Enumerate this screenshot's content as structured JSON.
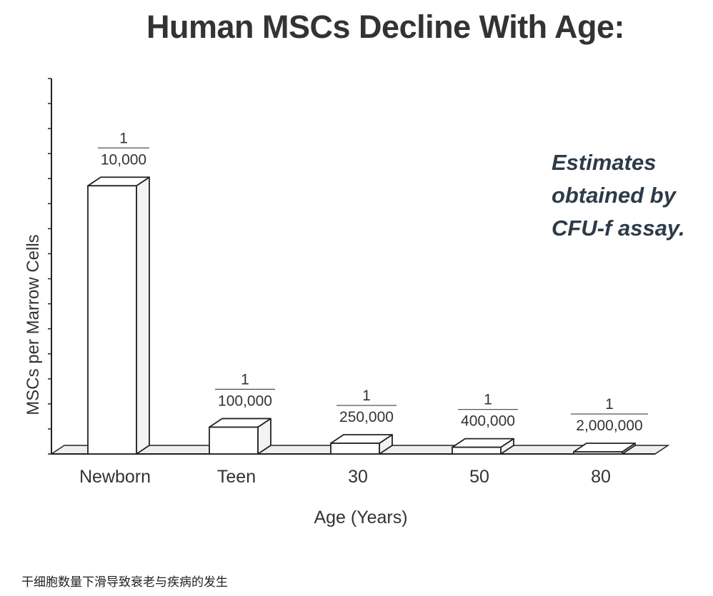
{
  "chart_data": {
    "type": "bar",
    "title": "Human MSCs Decline With Age:",
    "xlabel": "Age (Years)",
    "ylabel": "MSCs per Marrow Cells",
    "categories": [
      "Newborn",
      "Teen",
      "30",
      "50",
      "80"
    ],
    "values": [
      0.0001,
      1e-05,
      4e-06,
      2.5e-06,
      5e-07
    ],
    "value_labels": [
      {
        "numerator": "1",
        "denominator": "10,000"
      },
      {
        "numerator": "1",
        "denominator": "100,000"
      },
      {
        "numerator": "1",
        "denominator": "250,000"
      },
      {
        "numerator": "1",
        "denominator": "400,000"
      },
      {
        "numerator": "1",
        "denominator": "2,000,000"
      }
    ],
    "ylim": [
      0,
      0.00014
    ],
    "grid": false,
    "style": "3d-bar",
    "annotation": "Estimates obtained by CFU-f assay."
  },
  "colors": {
    "bar_fill": "#ffffff",
    "bar_side": "#f3f3f3",
    "stroke": "#222222",
    "floor": "#eeeeee"
  },
  "caption": "干细胞数量下滑导致衰老与疾病的发生"
}
